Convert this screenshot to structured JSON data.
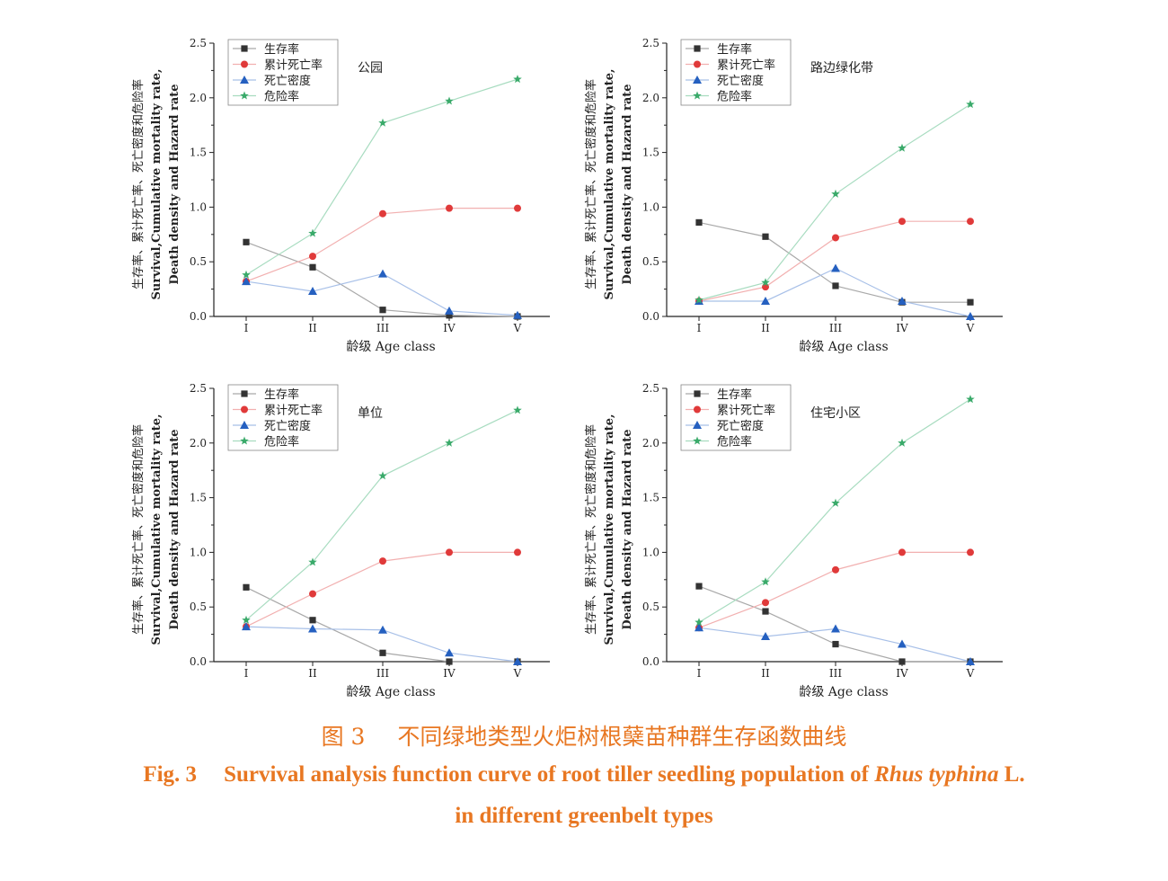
{
  "chart_data": [
    {
      "type": "line",
      "categories": [
        "I",
        "II",
        "III",
        "IV",
        "V"
      ],
      "annotation": "公园",
      "xlabel": "龄级  Age class",
      "ylabel": [
        "生存率、累计死亡率、死亡密度和危险率",
        "Survival,Cumulative mortality rate,",
        "Death density and Hazard rate"
      ],
      "ylim": [
        0,
        2.5
      ],
      "yticks": [
        "0.0",
        "0.5",
        "1.0",
        "1.5",
        "2.0",
        "2.5"
      ],
      "legend_position": "top-left",
      "grid": false,
      "series": [
        {
          "name": "生存率",
          "marker": "square",
          "color": "#333333",
          "line_color": "#a9a9a9",
          "values": [
            0.68,
            0.45,
            0.06,
            0.01,
            0.0
          ]
        },
        {
          "name": "累计死亡率",
          "marker": "circle",
          "color": "#e03a3a",
          "line_color": "#f2b0b0",
          "values": [
            0.32,
            0.55,
            0.94,
            0.99,
            0.99
          ]
        },
        {
          "name": "死亡密度",
          "marker": "triangle",
          "color": "#2560c0",
          "line_color": "#a8c0e8",
          "values": [
            0.32,
            0.23,
            0.39,
            0.05,
            0.01
          ]
        },
        {
          "name": "危险率",
          "marker": "star",
          "color": "#3aaa6a",
          "line_color": "#a8dcc0",
          "values": [
            0.38,
            0.76,
            1.77,
            1.97,
            2.17
          ]
        }
      ]
    },
    {
      "type": "line",
      "categories": [
        "I",
        "II",
        "III",
        "IV",
        "V"
      ],
      "annotation": "路边绿化带",
      "xlabel": "龄级  Age class",
      "ylabel": [
        "生存率、累计死亡率、死亡密度和危险率",
        "Survival,Cumulative mortality rate,",
        "Death density and Hazard rate"
      ],
      "ylim": [
        0,
        2.5
      ],
      "yticks": [
        "0.0",
        "0.5",
        "1.0",
        "1.5",
        "2.0",
        "2.5"
      ],
      "legend_position": "top-left",
      "grid": false,
      "series": [
        {
          "name": "生存率",
          "marker": "square",
          "color": "#333333",
          "line_color": "#a9a9a9",
          "values": [
            0.86,
            0.73,
            0.28,
            0.13,
            0.13
          ]
        },
        {
          "name": "累计死亡率",
          "marker": "circle",
          "color": "#e03a3a",
          "line_color": "#f2b0b0",
          "values": [
            0.14,
            0.27,
            0.72,
            0.87,
            0.87
          ]
        },
        {
          "name": "死亡密度",
          "marker": "triangle",
          "color": "#2560c0",
          "line_color": "#a8c0e8",
          "values": [
            0.14,
            0.14,
            0.44,
            0.14,
            0.0
          ]
        },
        {
          "name": "危险率",
          "marker": "star",
          "color": "#3aaa6a",
          "line_color": "#a8dcc0",
          "values": [
            0.15,
            0.31,
            1.12,
            1.54,
            1.94
          ]
        }
      ]
    },
    {
      "type": "line",
      "categories": [
        "I",
        "II",
        "III",
        "IV",
        "V"
      ],
      "annotation": "单位",
      "xlabel": "龄级  Age class",
      "ylabel": [
        "生存率、累计死亡率、死亡密度和危险率",
        "Survival,Cumulative mortality rate,",
        "Death density and Hazard rate"
      ],
      "ylim": [
        0,
        2.5
      ],
      "yticks": [
        "0.0",
        "0.5",
        "1.0",
        "1.5",
        "2.0",
        "2.5"
      ],
      "legend_position": "top-left",
      "grid": false,
      "series": [
        {
          "name": "生存率",
          "marker": "square",
          "color": "#333333",
          "line_color": "#a9a9a9",
          "values": [
            0.68,
            0.38,
            0.08,
            0.0,
            0.0
          ]
        },
        {
          "name": "累计死亡率",
          "marker": "circle",
          "color": "#e03a3a",
          "line_color": "#f2b0b0",
          "values": [
            0.32,
            0.62,
            0.92,
            1.0,
            1.0
          ]
        },
        {
          "name": "死亡密度",
          "marker": "triangle",
          "color": "#2560c0",
          "line_color": "#a8c0e8",
          "values": [
            0.32,
            0.3,
            0.29,
            0.08,
            0.0
          ]
        },
        {
          "name": "危险率",
          "marker": "star",
          "color": "#3aaa6a",
          "line_color": "#a8dcc0",
          "values": [
            0.38,
            0.91,
            1.7,
            2.0,
            2.3
          ]
        }
      ]
    },
    {
      "type": "line",
      "categories": [
        "I",
        "II",
        "III",
        "IV",
        "V"
      ],
      "annotation": "住宅小区",
      "xlabel": "龄级  Age class",
      "ylabel": [
        "生存率、累计死亡率、死亡密度和危险率",
        "Survival,Cumulative mortality rate,",
        "Death density and Hazard rate"
      ],
      "ylim": [
        0,
        2.5
      ],
      "yticks": [
        "0.0",
        "0.5",
        "1.0",
        "1.5",
        "2.0",
        "2.5"
      ],
      "legend_position": "top-left",
      "grid": false,
      "series": [
        {
          "name": "生存率",
          "marker": "square",
          "color": "#333333",
          "line_color": "#a9a9a9",
          "values": [
            0.69,
            0.46,
            0.16,
            0.0,
            0.0
          ]
        },
        {
          "name": "累计死亡率",
          "marker": "circle",
          "color": "#e03a3a",
          "line_color": "#f2b0b0",
          "values": [
            0.31,
            0.54,
            0.84,
            1.0,
            1.0
          ]
        },
        {
          "name": "死亡密度",
          "marker": "triangle",
          "color": "#2560c0",
          "line_color": "#a8c0e8",
          "values": [
            0.31,
            0.23,
            0.3,
            0.16,
            0.0
          ]
        },
        {
          "name": "危险率",
          "marker": "star",
          "color": "#3aaa6a",
          "line_color": "#a8dcc0",
          "values": [
            0.36,
            0.73,
            1.45,
            2.0,
            2.4
          ]
        }
      ]
    }
  ],
  "caption": {
    "cn_number": "图 3",
    "cn_text": "不同绿地类型火炬树根蘖苗种群生存函数曲线",
    "en_number": "Fig. 3",
    "en_text_before": "Survival analysis function curve of root tiller seedling population of",
    "en_species": "Rhus typhina",
    "en_text_after": "L.",
    "en_line2": "in different greenbelt types",
    "color": "#e87722"
  }
}
